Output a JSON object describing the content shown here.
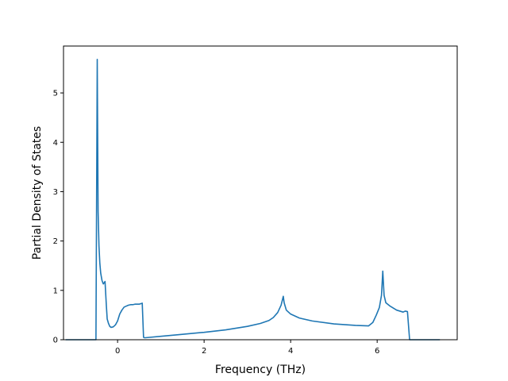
{
  "chart_data": {
    "type": "line",
    "title": "",
    "xlabel": "Frequency (THz)",
    "ylabel": "Partial Density of States",
    "xlim": [
      -1.25,
      7.85
    ],
    "ylim": [
      0,
      5.95
    ],
    "xticks": [
      0,
      2,
      4,
      6
    ],
    "xtick_labels": [
      "0",
      "2",
      "4",
      "6"
    ],
    "yticks": [
      0,
      1,
      2,
      3,
      4,
      5
    ],
    "ytick_labels": [
      "0",
      "1",
      "2",
      "3",
      "4",
      "5"
    ],
    "grid": false,
    "legend": "none",
    "series": [
      {
        "color": "#1f77b4",
        "x": [
          -1.2,
          -0.5,
          -0.47,
          -0.45,
          -0.43,
          -0.41,
          -0.39,
          -0.36,
          -0.33,
          -0.29,
          -0.26,
          -0.24,
          -0.21,
          -0.18,
          -0.15,
          -0.1,
          -0.05,
          0.0,
          0.05,
          0.1,
          0.15,
          0.2,
          0.25,
          0.3,
          0.35,
          0.4,
          0.5,
          0.57,
          0.6,
          0.62,
          0.64,
          1.0,
          1.5,
          2.0,
          2.5,
          3.0,
          3.3,
          3.5,
          3.6,
          3.7,
          3.78,
          3.83,
          3.85,
          3.9,
          4.0,
          4.2,
          4.5,
          5.0,
          5.5,
          5.8,
          5.9,
          5.98,
          6.05,
          6.1,
          6.13,
          6.16,
          6.2,
          6.3,
          6.45,
          6.6,
          6.65,
          6.7,
          6.75,
          6.8,
          7.45
        ],
        "y": [
          0.0,
          0.0,
          5.68,
          2.6,
          1.9,
          1.55,
          1.35,
          1.2,
          1.13,
          1.18,
          0.7,
          0.42,
          0.33,
          0.27,
          0.25,
          0.26,
          0.3,
          0.38,
          0.52,
          0.6,
          0.66,
          0.68,
          0.7,
          0.71,
          0.71,
          0.72,
          0.72,
          0.74,
          0.05,
          0.04,
          0.04,
          0.07,
          0.11,
          0.15,
          0.2,
          0.27,
          0.33,
          0.39,
          0.45,
          0.55,
          0.7,
          0.88,
          0.75,
          0.6,
          0.52,
          0.44,
          0.38,
          0.32,
          0.29,
          0.28,
          0.35,
          0.5,
          0.65,
          0.9,
          1.39,
          0.9,
          0.75,
          0.68,
          0.6,
          0.56,
          0.58,
          0.57,
          0.0,
          0.0,
          0.0
        ]
      }
    ]
  }
}
